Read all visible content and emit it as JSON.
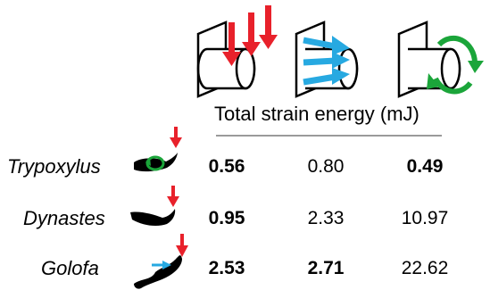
{
  "header": {
    "caption": "Total strain energy (mJ)"
  },
  "load_icons": [
    {
      "name": "bending-load-icon",
      "arrow_color": "#e8212b"
    },
    {
      "name": "lateral-load-icon",
      "arrow_color": "#27a9e1"
    },
    {
      "name": "torsion-load-icon",
      "arrow_color": "#1ba53a"
    }
  ],
  "rows": [
    {
      "species": "Trypoxylus",
      "values": [
        "0.56",
        "0.80",
        "0.49"
      ],
      "bold": [
        true,
        false,
        true
      ]
    },
    {
      "species": "Dynastes",
      "values": [
        "0.95",
        "2.33",
        "10.97"
      ],
      "bold": [
        true,
        false,
        false
      ]
    },
    {
      "species": "Golofa",
      "values": [
        "2.53",
        "2.71",
        "22.62"
      ],
      "bold": [
        true,
        true,
        false
      ]
    }
  ]
}
